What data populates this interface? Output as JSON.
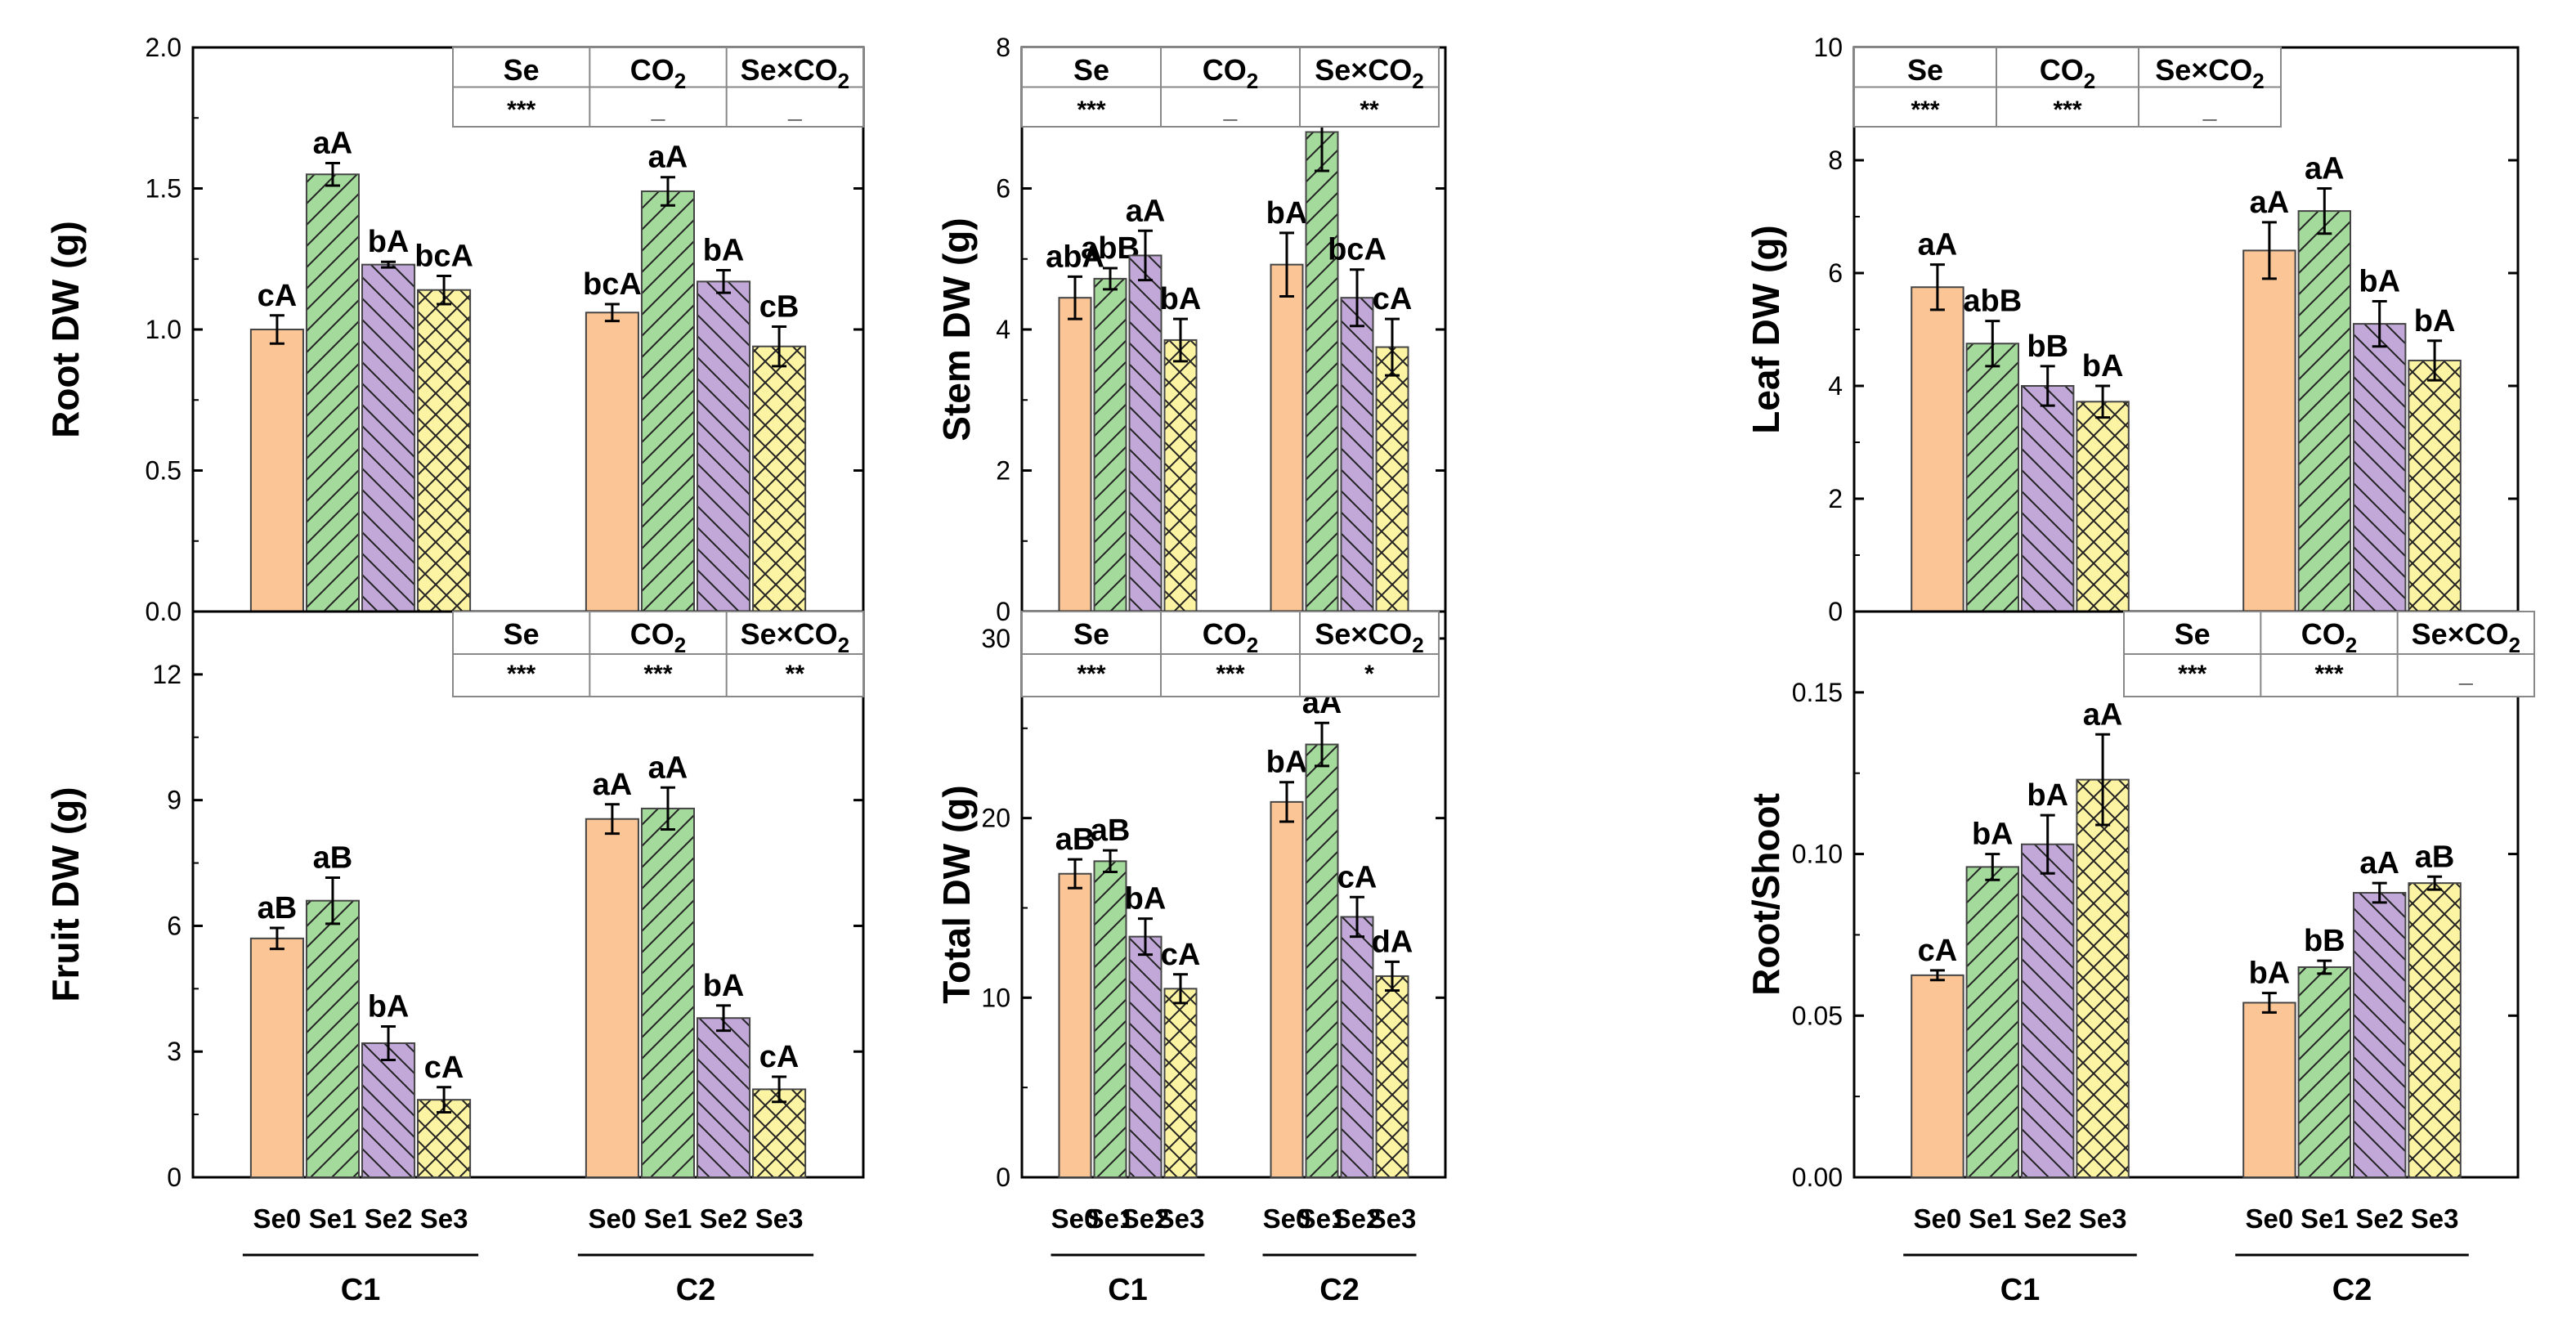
{
  "colors": {
    "Se0": "#FBC595",
    "Se1": "#A4DA9B",
    "Se2": "#C1A8D8",
    "Se3": "#FCF4A2",
    "stroke": "#000000"
  },
  "chart_data": [
    {
      "type": "bar",
      "ylabel": "Root DW (g)",
      "ylim": [
        0,
        2.0
      ],
      "yticks": [
        "0.0",
        "0.5",
        "1.0",
        "1.5",
        "2.0"
      ],
      "groups": [
        "C1",
        "C2"
      ],
      "categories": [
        "Se0",
        "Se1",
        "Se2",
        "Se3"
      ],
      "series": [
        {
          "group": "C1",
          "values": [
            1.0,
            1.55,
            1.23,
            1.14
          ],
          "errors": [
            0.05,
            0.04,
            0.01,
            0.05
          ],
          "labels": [
            "cA",
            "aA",
            "bA",
            "bcA"
          ]
        },
        {
          "group": "C2",
          "values": [
            1.06,
            1.49,
            1.17,
            0.94
          ],
          "errors": [
            0.03,
            0.05,
            0.04,
            0.07
          ],
          "labels": [
            "bcA",
            "aA",
            "bA",
            "cB"
          ]
        }
      ],
      "anova": {
        "headers": [
          "Se",
          "CO2",
          "Se×CO2"
        ],
        "values": [
          "***",
          "_",
          "_"
        ]
      }
    },
    {
      "type": "bar",
      "ylabel": "Stem DW (g)",
      "ylim": [
        0,
        8
      ],
      "yticks": [
        "0",
        "2",
        "4",
        "6",
        "8"
      ],
      "groups": [
        "C1",
        "C2"
      ],
      "categories": [
        "Se0",
        "Se1",
        "Se2",
        "Se3"
      ],
      "series": [
        {
          "group": "C1",
          "values": [
            4.45,
            4.72,
            5.05,
            3.85
          ],
          "errors": [
            0.3,
            0.15,
            0.35,
            0.3
          ],
          "labels": [
            "abA",
            "abB",
            "aA",
            "bA"
          ]
        },
        {
          "group": "C2",
          "values": [
            4.92,
            6.8,
            4.45,
            3.75
          ],
          "errors": [
            0.45,
            0.55,
            0.4,
            0.4
          ],
          "labels": [
            "bA",
            "aA",
            "bcA",
            "cA"
          ]
        }
      ],
      "anova": {
        "headers": [
          "Se",
          "CO2",
          "Se×CO2"
        ],
        "values": [
          "***",
          "_",
          "**"
        ]
      }
    },
    {
      "type": "bar",
      "ylabel": "Leaf  DW (g)",
      "ylim": [
        0,
        10
      ],
      "yticks": [
        "0",
        "2",
        "4",
        "6",
        "8",
        "10"
      ],
      "groups": [
        "C1",
        "C2"
      ],
      "categories": [
        "Se0",
        "Se1",
        "Se2",
        "Se3"
      ],
      "series": [
        {
          "group": "C1",
          "values": [
            5.75,
            4.75,
            4.0,
            3.72
          ],
          "errors": [
            0.4,
            0.4,
            0.35,
            0.28
          ],
          "labels": [
            "aA",
            "abB",
            "bB",
            "bA"
          ]
        },
        {
          "group": "C2",
          "values": [
            6.4,
            7.1,
            5.1,
            4.45
          ],
          "errors": [
            0.5,
            0.4,
            0.4,
            0.35
          ],
          "labels": [
            "aA",
            "aA",
            "bA",
            "bA"
          ]
        }
      ],
      "anova": {
        "headers": [
          "Se",
          "CO2",
          "Se×CO2"
        ],
        "values": [
          "***",
          "***",
          "_"
        ]
      }
    },
    {
      "type": "bar",
      "ylabel": "Fruit DW (g)",
      "ylim": [
        0,
        13.5
      ],
      "yticks": [
        "0",
        "3",
        "6",
        "9",
        "12"
      ],
      "groups": [
        "C1",
        "C2"
      ],
      "categories": [
        "Se0",
        "Se1",
        "Se2",
        "Se3"
      ],
      "series": [
        {
          "group": "C1",
          "values": [
            5.7,
            6.6,
            3.2,
            1.85
          ],
          "errors": [
            0.25,
            0.55,
            0.4,
            0.3
          ],
          "labels": [
            "aB",
            "aB",
            "bA",
            "cA"
          ]
        },
        {
          "group": "C2",
          "values": [
            8.55,
            8.8,
            3.8,
            2.1
          ],
          "errors": [
            0.35,
            0.5,
            0.3,
            0.3
          ],
          "labels": [
            "aA",
            "aA",
            "bA",
            "cA"
          ]
        }
      ],
      "anova": {
        "headers": [
          "Se",
          "CO2",
          "Se×CO2"
        ],
        "values": [
          "***",
          "***",
          "**"
        ]
      }
    },
    {
      "type": "bar",
      "ylabel": "Total DW (g)",
      "ylim": [
        0,
        31.5
      ],
      "yticks": [
        "0",
        "10",
        "20",
        "30"
      ],
      "groups": [
        "C1",
        "C2"
      ],
      "categories": [
        "Se0",
        "Se1",
        "Se2",
        "Se3"
      ],
      "series": [
        {
          "group": "C1",
          "values": [
            16.9,
            17.6,
            13.4,
            10.5
          ],
          "errors": [
            0.8,
            0.6,
            1.0,
            0.8
          ],
          "labels": [
            "aB",
            "aB",
            "bA",
            "cA"
          ]
        },
        {
          "group": "C2",
          "values": [
            20.9,
            24.1,
            14.5,
            11.2
          ],
          "errors": [
            1.1,
            1.2,
            1.1,
            0.8
          ],
          "labels": [
            "bA",
            "aA",
            "cA",
            "dA"
          ]
        }
      ],
      "anova": {
        "headers": [
          "Se",
          "CO2",
          "Se×CO2"
        ],
        "values": [
          "***",
          "***",
          "*"
        ]
      }
    },
    {
      "type": "bar",
      "ylabel": "Root/Shoot",
      "ylim": [
        0,
        0.175
      ],
      "yticks": [
        "0.00",
        "0.05",
        "0.10",
        "0.15"
      ],
      "groups": [
        "C1",
        "C2"
      ],
      "categories": [
        "Se0",
        "Se1",
        "Se2",
        "Se3"
      ],
      "series": [
        {
          "group": "C1",
          "values": [
            0.0625,
            0.096,
            0.103,
            0.123
          ],
          "errors": [
            0.0015,
            0.004,
            0.009,
            0.014
          ],
          "labels": [
            "cA",
            "bA",
            "bA",
            "aA"
          ]
        },
        {
          "group": "C2",
          "values": [
            0.054,
            0.065,
            0.088,
            0.091
          ],
          "errors": [
            0.003,
            0.002,
            0.003,
            0.002
          ],
          "labels": [
            "bA",
            "bB",
            "aA",
            "aB"
          ]
        }
      ],
      "anova": {
        "headers": [
          "Se",
          "CO2",
          "Se×CO2"
        ],
        "values": [
          "***",
          "***",
          "_"
        ]
      }
    }
  ]
}
